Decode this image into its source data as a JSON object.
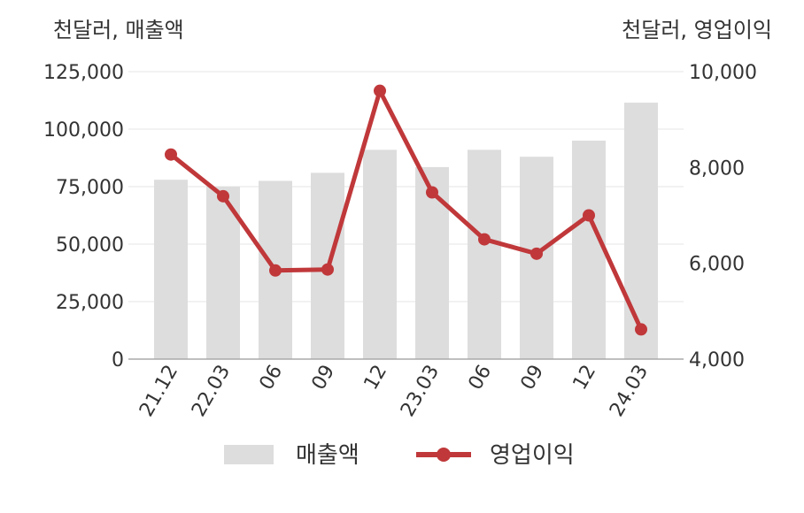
{
  "chart_data": {
    "type": "bar+line",
    "categories": [
      "21.12",
      "22.03",
      "06",
      "09",
      "12",
      "23.03",
      "06",
      "09",
      "12",
      "24.03"
    ],
    "left_axis_unit": "천달러, 매출액",
    "right_axis_unit": "천달러, 영업이익",
    "left_ticks": [
      "0",
      "25,000",
      "50,000",
      "75,000",
      "100,000",
      "125,000"
    ],
    "right_ticks": [
      "4,000",
      "6,000",
      "8,000",
      "10,000"
    ],
    "ylim_left": [
      0,
      125000
    ],
    "ylim_right": [
      4000,
      10000
    ],
    "grid": true,
    "legend_placement": "bottom",
    "series": [
      {
        "name": "매출액",
        "type": "bar",
        "axis": "left",
        "color": "#dddddd",
        "values": [
          78000,
          75000,
          77500,
          81000,
          91000,
          83500,
          91000,
          88000,
          95000,
          111500
        ]
      },
      {
        "name": "영업이익",
        "type": "line",
        "axis": "right",
        "color": "#c0383a",
        "values": [
          8270,
          7400,
          5850,
          5870,
          9600,
          7480,
          6500,
          6200,
          7000,
          4620
        ]
      }
    ]
  }
}
